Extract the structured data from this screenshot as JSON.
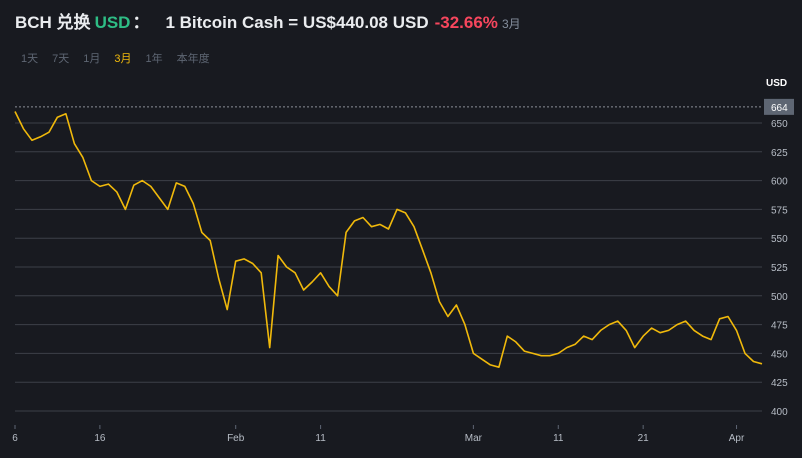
{
  "header": {
    "pair": "BCH 兑换",
    "quote": "USD",
    "colon": "：",
    "rate": "1 Bitcoin Cash = US$440.08 USD",
    "change": "-32.66%",
    "period": "3月"
  },
  "tabs": [
    {
      "label": "1天",
      "active": false
    },
    {
      "label": "7天",
      "active": false
    },
    {
      "label": "1月",
      "active": false
    },
    {
      "label": "3月",
      "active": true
    },
    {
      "label": "1年",
      "active": false
    },
    {
      "label": "本年度",
      "active": false
    }
  ],
  "colors": {
    "line": "#f0b90b",
    "positive": "#2ebd85",
    "negative": "#f6465d",
    "grid": "#3c4048",
    "background": "#181a20"
  },
  "chart_data": {
    "type": "line",
    "title": "",
    "ylabel": "USD",
    "ylim": [
      390,
      670
    ],
    "y_ticks": [
      400,
      425,
      450,
      475,
      500,
      525,
      550,
      575,
      600,
      625,
      650
    ],
    "high_marker": 664,
    "x_ticks": [
      "6",
      "16",
      "Feb",
      "11",
      "Mar",
      "11",
      "21",
      "Apr"
    ],
    "x_tick_positions": [
      0,
      10,
      26,
      36,
      54,
      64,
      74,
      85
    ],
    "x": [
      0,
      1,
      2,
      3,
      4,
      5,
      6,
      7,
      8,
      9,
      10,
      11,
      12,
      13,
      14,
      15,
      16,
      17,
      18,
      19,
      20,
      21,
      22,
      23,
      24,
      25,
      26,
      27,
      28,
      29,
      30,
      31,
      32,
      33,
      34,
      35,
      36,
      37,
      38,
      39,
      40,
      41,
      42,
      43,
      44,
      45,
      46,
      47,
      48,
      49,
      50,
      51,
      52,
      53,
      54,
      55,
      56,
      57,
      58,
      59,
      60,
      61,
      62,
      63,
      64,
      65,
      66,
      67,
      68,
      69,
      70,
      71,
      72,
      73,
      74,
      75,
      76,
      77,
      78,
      79,
      80,
      81,
      82,
      83,
      84,
      85,
      86,
      87,
      88
    ],
    "series": [
      {
        "values": [
          660,
          645,
          635,
          638,
          642,
          655,
          658,
          632,
          620,
          600,
          595,
          597,
          590,
          575,
          596,
          600,
          595,
          585,
          575,
          598,
          595,
          580,
          555,
          548,
          515,
          488,
          530,
          532,
          528,
          520,
          455,
          535,
          525,
          520,
          505,
          512,
          520,
          508,
          500,
          555,
          565,
          568,
          560,
          562,
          558,
          575,
          572,
          560,
          540,
          520,
          495,
          482,
          492,
          475,
          450,
          445,
          440,
          438,
          465,
          460,
          452,
          450,
          448,
          448,
          450,
          455,
          458,
          465,
          462,
          470,
          475,
          478,
          470,
          455,
          465,
          472,
          468,
          470,
          475,
          478,
          470,
          465,
          462,
          480,
          482,
          470,
          450,
          443,
          441
        ]
      }
    ]
  }
}
